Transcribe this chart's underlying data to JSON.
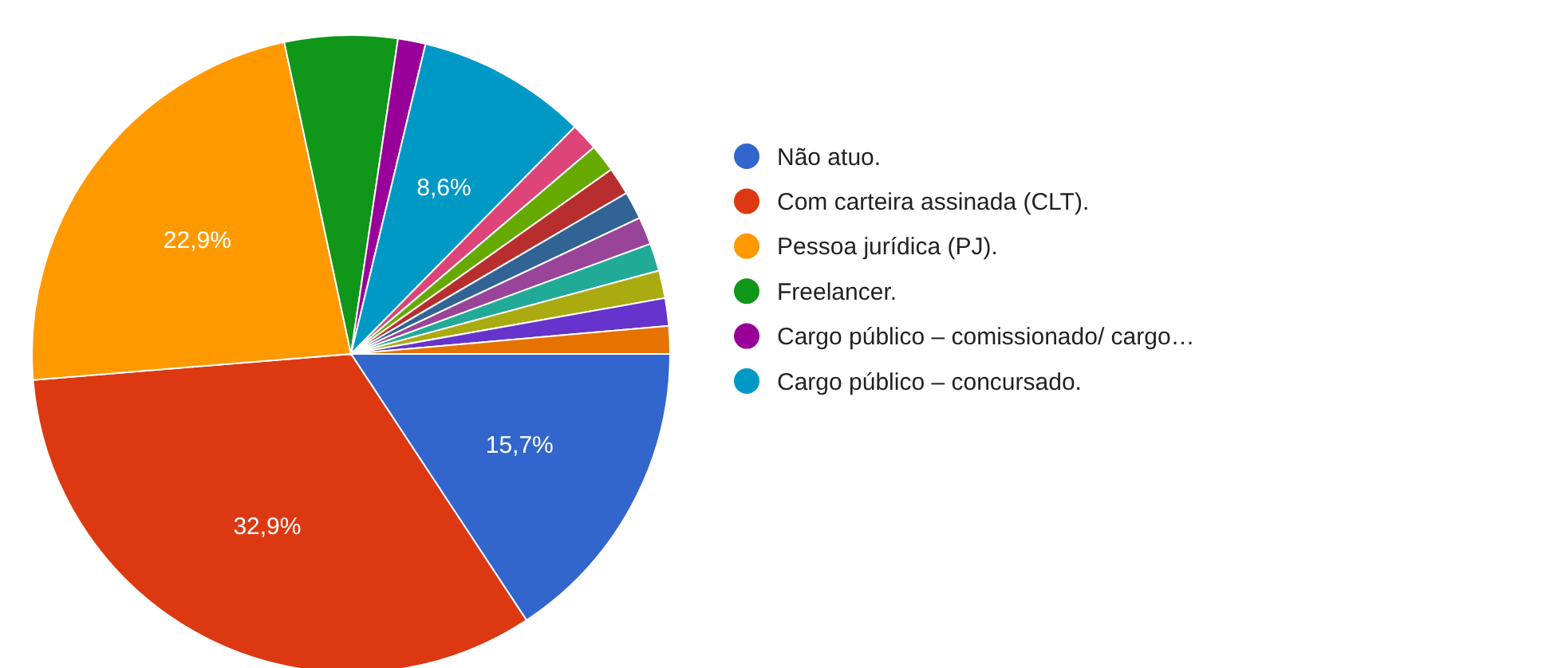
{
  "chart_data": {
    "type": "pie",
    "categories": [
      "Não atuo.",
      "Com carteira assinada (CLT).",
      "Pessoa jurídica (PJ).",
      "Freelancer.",
      "Cargo público – comissionado/ cargo…",
      "Cargo público – concursado.",
      null,
      null,
      null,
      null,
      null,
      null,
      null,
      null,
      null
    ],
    "values": [
      15.7,
      32.9,
      22.9,
      5.7,
      1.4,
      8.6,
      1.4,
      1.4,
      1.4,
      1.4,
      1.4,
      1.4,
      1.4,
      1.4,
      1.4
    ],
    "colors": [
      "#3366cc",
      "#dc3912",
      "#ff9900",
      "#109618",
      "#990099",
      "#0099c6",
      "#dd4477",
      "#66aa00",
      "#b82e2e",
      "#316395",
      "#994499",
      "#22aa99",
      "#aaaa11",
      "#6633cc",
      "#e67300"
    ],
    "value_labels": [
      "15,7%",
      "32,9%",
      "22,9%",
      null,
      null,
      "8,6%",
      null,
      null,
      null,
      null,
      null,
      null,
      null,
      null,
      null
    ],
    "legend": "right"
  }
}
